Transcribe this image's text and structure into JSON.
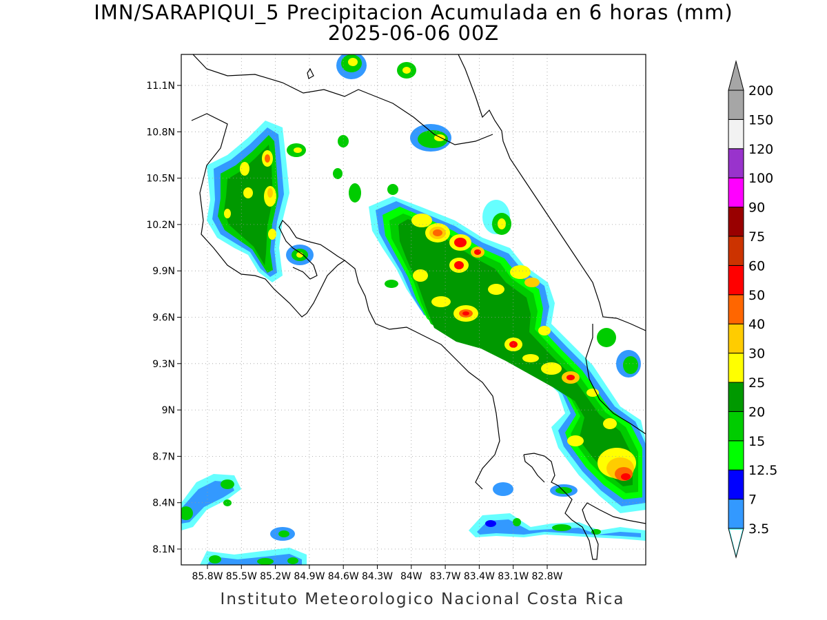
{
  "title": {
    "line1": "IMN/SARAPIQUI_5 Precipitacion Acumulada en 6 horas (mm)",
    "line2": "2025-06-06 00Z"
  },
  "map": {
    "lon_range": [
      -86.0,
      -83.0
    ],
    "lat_range": [
      8.0,
      11.3
    ],
    "lon_ticks": [
      {
        "value": -85.8,
        "label": "85.8W"
      },
      {
        "value": -85.5,
        "label": "85.5W"
      },
      {
        "value": -85.2,
        "label": "85.2W"
      },
      {
        "value": -84.9,
        "label": "84.9W"
      },
      {
        "value": -84.6,
        "label": "84.6W"
      },
      {
        "value": -84.3,
        "label": "84.3W"
      },
      {
        "value": -84.0,
        "label": "84W"
      },
      {
        "value": -83.7,
        "label": "83.7W"
      },
      {
        "value": -83.4,
        "label": "83.4W"
      },
      {
        "value": -83.1,
        "label": "83.1W"
      },
      {
        "value": -82.8,
        "label": "82.8W"
      }
    ],
    "lat_ticks": [
      {
        "value": 8.1,
        "label": "8.1N"
      },
      {
        "value": 8.4,
        "label": "8.4N"
      },
      {
        "value": 8.7,
        "label": "8.7N"
      },
      {
        "value": 9.0,
        "label": "9N"
      },
      {
        "value": 9.3,
        "label": "9.3N"
      },
      {
        "value": 9.6,
        "label": "9.6N"
      },
      {
        "value": 9.9,
        "label": "9.9N"
      },
      {
        "value": 10.2,
        "label": "10.2N"
      },
      {
        "value": 10.5,
        "label": "10.5N"
      },
      {
        "value": 10.8,
        "label": "10.8N"
      },
      {
        "value": 11.1,
        "label": "11.1N"
      }
    ],
    "grid": "dotted"
  },
  "colorbar": {
    "levels": [
      {
        "label": "3.5",
        "color": "#66ffff"
      },
      {
        "label": "7",
        "color": "#3399ff"
      },
      {
        "label": "12.5",
        "color": "#0000ff"
      },
      {
        "label": "15",
        "color": "#00ff00"
      },
      {
        "label": "20",
        "color": "#00cc00"
      },
      {
        "label": "25",
        "color": "#009900"
      },
      {
        "label": "30",
        "color": "#ffff00"
      },
      {
        "label": "40",
        "color": "#ffcc00"
      },
      {
        "label": "50",
        "color": "#ff6600"
      },
      {
        "label": "60",
        "color": "#ff0000"
      },
      {
        "label": "75",
        "color": "#cc3300"
      },
      {
        "label": "90",
        "color": "#990000"
      },
      {
        "label": "100",
        "color": "#ff00ff"
      },
      {
        "label": "120",
        "color": "#9933cc"
      },
      {
        "label": "150",
        "color": "#f2f2f2"
      },
      {
        "label": "200",
        "color": "#a6a6a6"
      }
    ],
    "top_arrow_color": "#a6a6a6",
    "bottom_arrow_color": "#ffffff"
  },
  "footer": "Instituto Meteorologico Nacional Costa Rica"
}
